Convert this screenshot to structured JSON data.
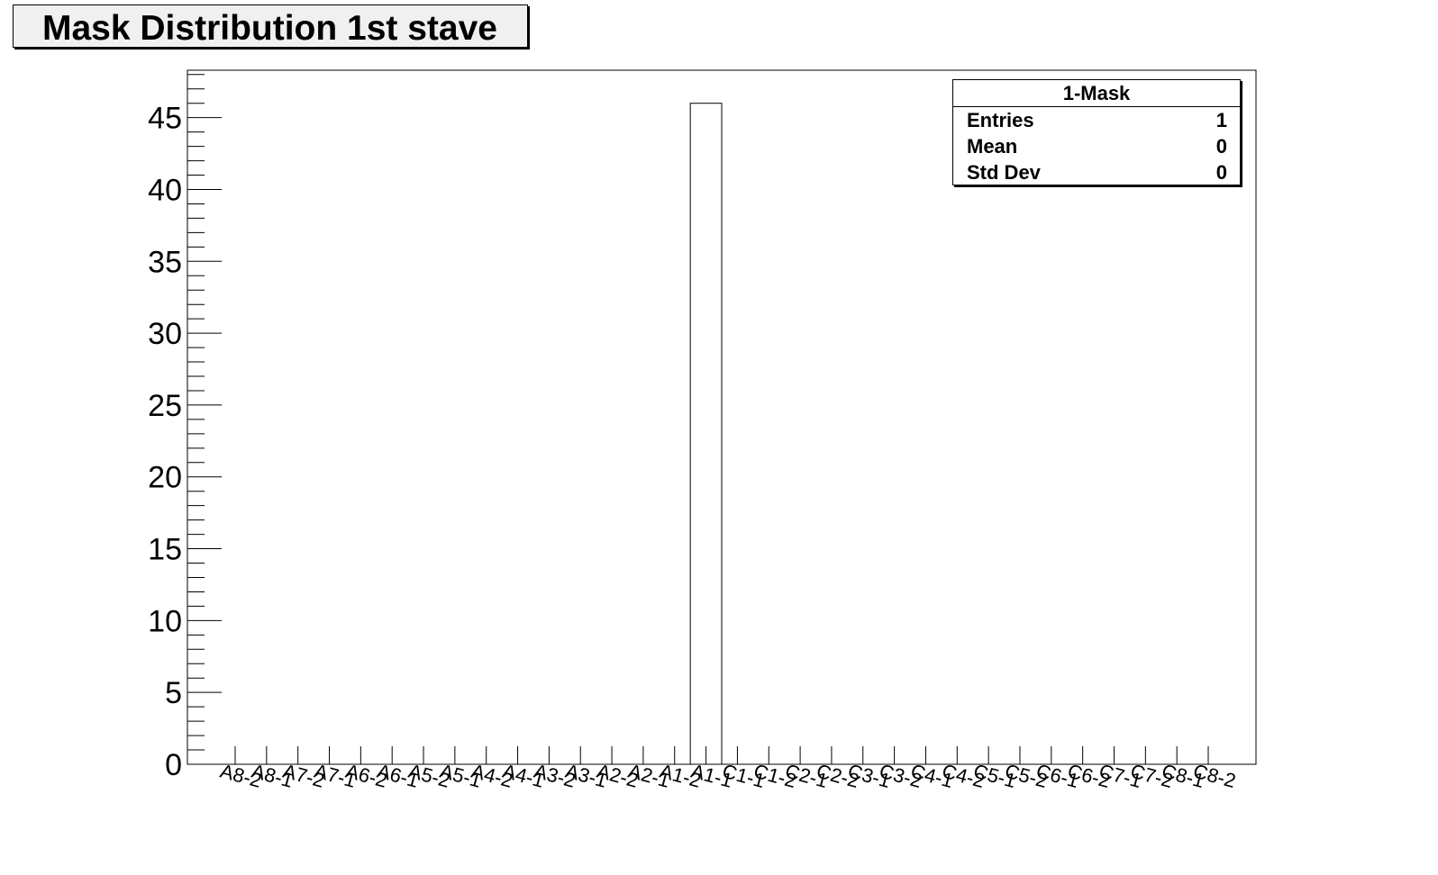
{
  "chart_data": {
    "type": "bar",
    "title": "Mask Distribution 1st stave",
    "xlabel": "",
    "ylabel": "",
    "categories": [
      "A8-2",
      "A8-1",
      "A7-2",
      "A7-1",
      "A6-2",
      "A6-1",
      "A5-2",
      "A5-1",
      "A4-2",
      "A4-1",
      "A3-2",
      "A3-1",
      "A2-2",
      "A2-1",
      "A1-2",
      "A1-1",
      "C1-1",
      "C1-2",
      "C2-1",
      "C2-2",
      "C3-1",
      "C3-2",
      "C4-1",
      "C4-2",
      "C5-1",
      "C5-2",
      "C6-1",
      "C6-2",
      "C7-1",
      "C7-2",
      "C8-1",
      "C8-2"
    ],
    "values": [
      0,
      0,
      0,
      0,
      0,
      0,
      0,
      0,
      0,
      0,
      0,
      0,
      0,
      0,
      0,
      46,
      0,
      0,
      0,
      0,
      0,
      0,
      0,
      0,
      0,
      0,
      0,
      0,
      0,
      0,
      0,
      0
    ],
    "ylim": [
      0,
      48.3
    ],
    "yticks": [
      "0",
      "5",
      "10",
      "15",
      "20",
      "25",
      "30",
      "35",
      "40",
      "45"
    ],
    "grid": false,
    "legend_placement": "top-right",
    "stats": {
      "name": "1-Mask",
      "entries_label": "Entries",
      "entries": "1",
      "mean_label": "Mean",
      "mean": "0",
      "stddev_label": "Std Dev",
      "stddev": "0"
    },
    "colors": {
      "bar_fill": "#ffffff",
      "line": "#000000",
      "title_fill": "#f0f0f0"
    }
  }
}
